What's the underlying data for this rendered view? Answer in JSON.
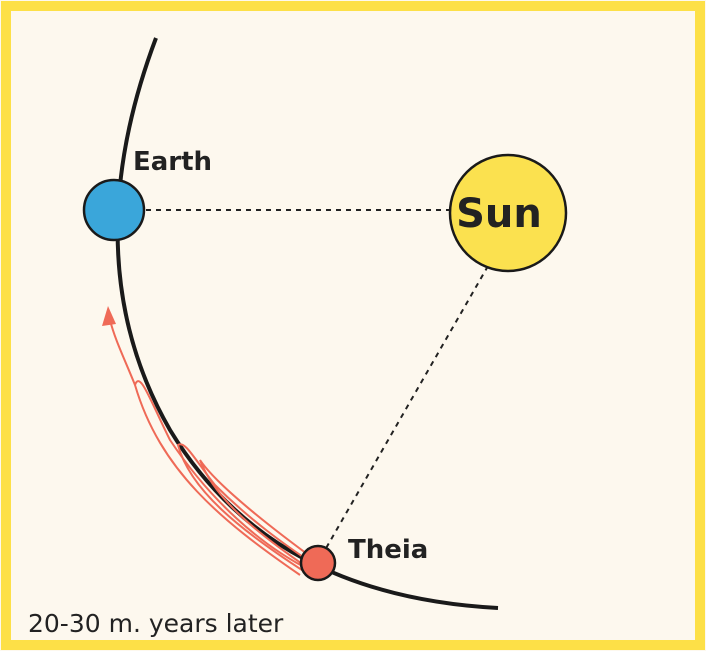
{
  "nodes": [
    {
      "label": "Earth"
    },
    {
      "label": "Sun"
    },
    {
      "label": "Theia"
    }
  ],
  "caption": "20-30 m. years later"
}
